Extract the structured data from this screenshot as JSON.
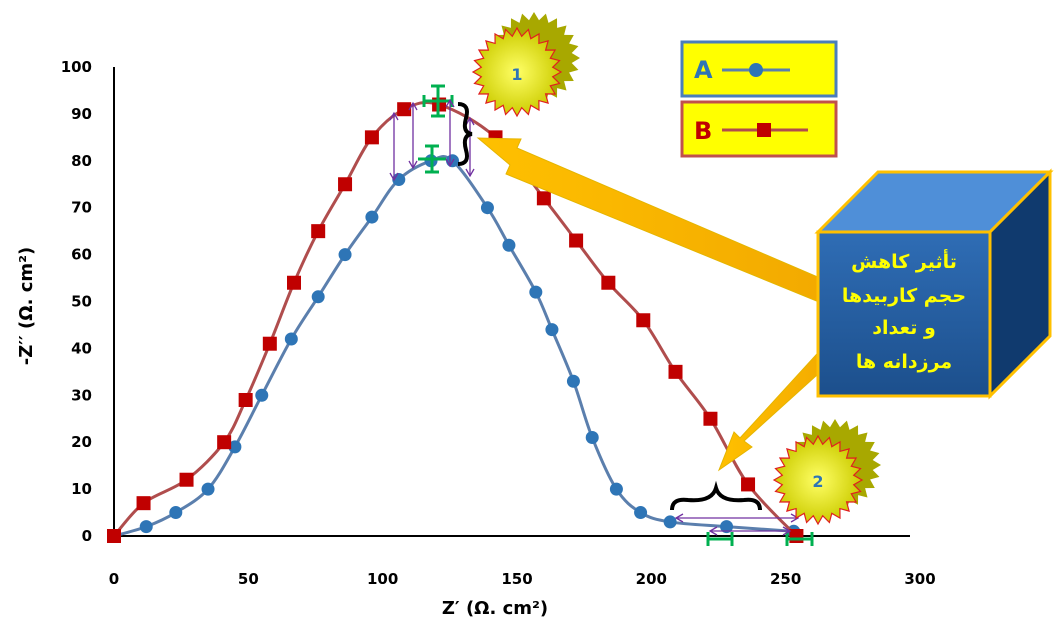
{
  "chart_data": {
    "type": "line",
    "xlabel": "Z′ (Ω. cm²)",
    "ylabel": "-Z′′ (Ω. cm²)",
    "xlim": [
      0,
      300
    ],
    "ylim": [
      0,
      100
    ],
    "x_ticks": [
      "0",
      "50",
      "100",
      "150",
      "200",
      "250",
      "300"
    ],
    "y_ticks": [
      "0",
      "10",
      "20",
      "30",
      "40",
      "50",
      "60",
      "70",
      "80",
      "90",
      "100"
    ],
    "grid": false,
    "legend_position": "top-right",
    "series": [
      {
        "name": "A",
        "color": "#2e75b6",
        "line_color": "#5b7fad",
        "marker": "circle",
        "x": [
          0,
          12,
          23,
          35,
          45,
          55,
          66,
          76,
          86,
          96,
          106,
          118,
          126,
          139,
          147,
          157,
          163,
          171,
          178,
          187,
          196,
          207,
          228,
          253
        ],
        "y": [
          0,
          2,
          5,
          10,
          19,
          30,
          42,
          51,
          60,
          68,
          76,
          80,
          80,
          70,
          62,
          52,
          44,
          33,
          21,
          10,
          5,
          3,
          2,
          1
        ]
      },
      {
        "name": "B",
        "color": "#c00000",
        "line_color": "#b04d4d",
        "marker": "square",
        "x": [
          0,
          11,
          27,
          41,
          49,
          58,
          67,
          76,
          86,
          96,
          108,
          121,
          142,
          160,
          172,
          184,
          197,
          209,
          222,
          236,
          254
        ],
        "y": [
          0,
          7,
          12,
          20,
          29,
          41,
          54,
          65,
          75,
          85,
          91,
          92,
          85,
          72,
          63,
          54,
          46,
          35,
          25,
          11,
          0
        ]
      }
    ],
    "annotations": {
      "badge_1": "1",
      "badge_2": "2",
      "note_lines": [
        "تأثیر کاهش",
        "حجم کاربیدها",
        "و تعداد",
        "مرزدانه ها"
      ]
    }
  }
}
